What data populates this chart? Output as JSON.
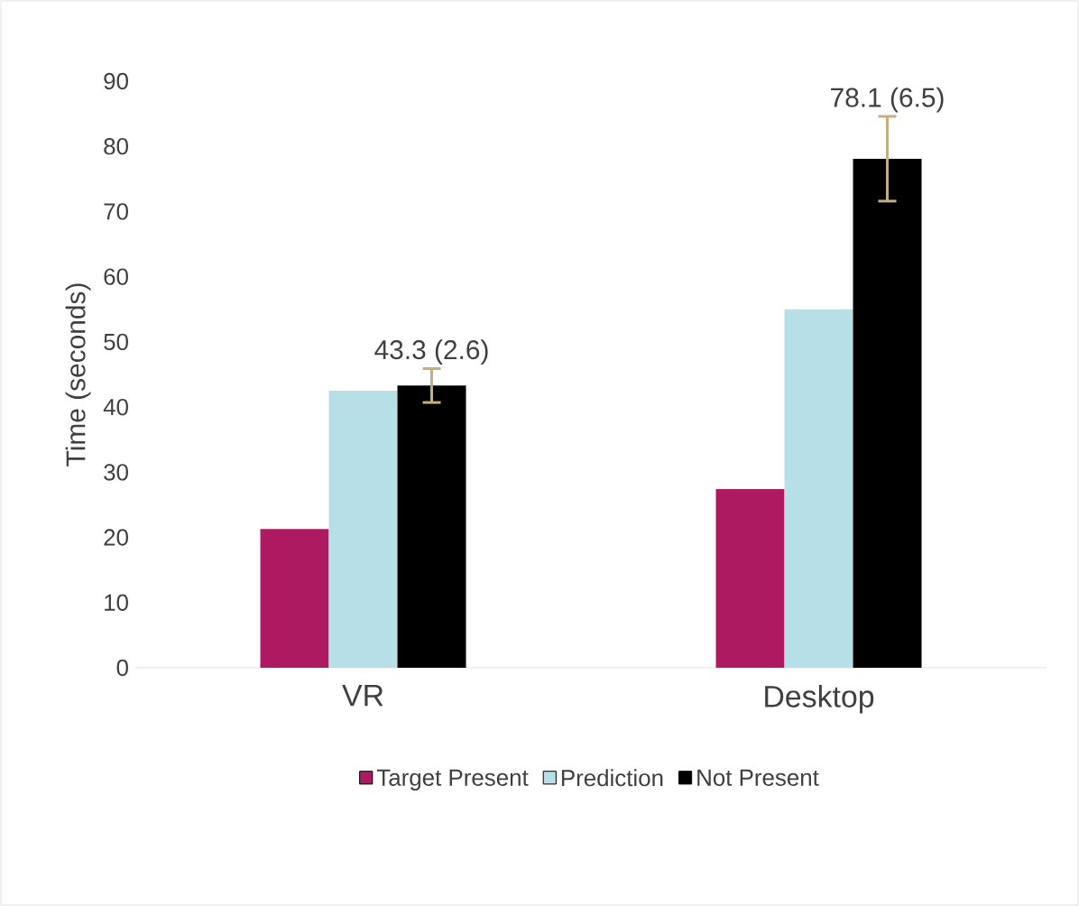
{
  "chart_data": {
    "type": "bar",
    "ylabel": "Time (seconds)",
    "categories": [
      "VR",
      "Desktop"
    ],
    "series": [
      {
        "name": "Target Present",
        "color": "#ad1a62",
        "values": [
          21.3,
          27.4
        ]
      },
      {
        "name": "Prediction",
        "color": "#b7dfe8",
        "values": [
          42.5,
          55.0
        ]
      },
      {
        "name": "Not Present",
        "color": "#000000",
        "values": [
          43.3,
          78.1
        ],
        "errors": [
          2.6,
          6.5
        ],
        "value_labels": [
          "43.3 (2.6)",
          "78.1 (6.5)"
        ]
      }
    ],
    "ylim": [
      0,
      90
    ],
    "yticks": [
      0,
      10,
      20,
      30,
      40,
      50,
      60,
      70,
      80,
      90
    ],
    "legend": "bottom"
  }
}
